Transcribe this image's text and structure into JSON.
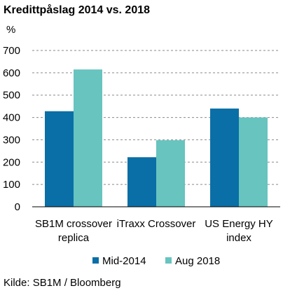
{
  "title": "Kredittpåslag 2014  vs. 2018",
  "unit": "%",
  "source": "Kilde: SB1M / Bloomberg",
  "chart_data": {
    "type": "bar",
    "title": "Kredittpåslag 2014  vs. 2018",
    "ylabel": "%",
    "xlabel": "",
    "ylim": [
      0,
      700
    ],
    "yticks": [
      0,
      100,
      200,
      300,
      400,
      500,
      600,
      700
    ],
    "grid": true,
    "legend_position": "bottom",
    "categories": [
      [
        "SB1M crossover",
        "replica"
      ],
      [
        "iTraxx Crossover"
      ],
      [
        "US Energy HY",
        "index"
      ]
    ],
    "series": [
      {
        "name": "Mid-2014",
        "color": "#0a6fa6",
        "values": [
          428,
          222,
          440
        ]
      },
      {
        "name": "Aug 2018",
        "color": "#67c4bf",
        "values": [
          615,
          298,
          400
        ]
      }
    ]
  }
}
